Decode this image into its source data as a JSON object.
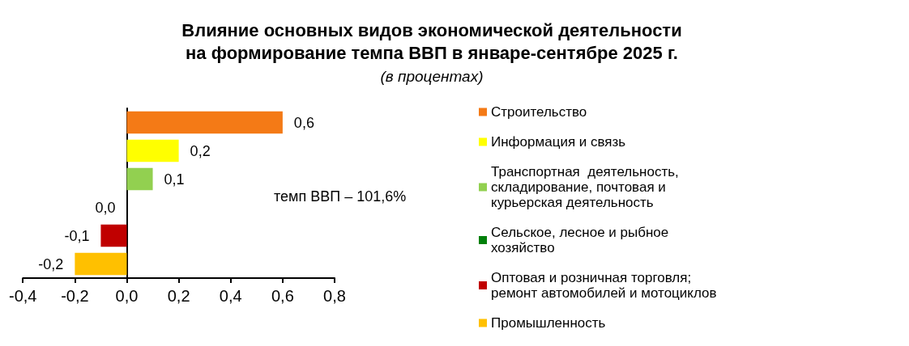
{
  "chart_data": {
    "type": "bar",
    "orientation": "horizontal",
    "title": "Влияние основных видов экономической деятельности\nна формирование темпа ВВП в январе-сентябре 2025 г.",
    "subtitle": "(в процентах)",
    "categories": [
      null,
      null,
      null,
      null,
      null,
      null
    ],
    "series": [
      {
        "name": "Строительство",
        "color": "#f47a16",
        "values": [
          0.6,
          null,
          null,
          null,
          null,
          null
        ],
        "value_labels": [
          "0,6",
          null,
          null,
          null,
          null,
          null
        ]
      },
      {
        "name": "Информация и связь",
        "color": "#ffff00",
        "values": [
          null,
          0.2,
          null,
          null,
          null,
          null
        ],
        "value_labels": [
          null,
          "0,2",
          null,
          null,
          null,
          null
        ]
      },
      {
        "name": "Транспортная  деятельность, складирование, почтовая и курьерская деятельность",
        "color": "#92d050",
        "values": [
          null,
          null,
          0.1,
          null,
          null,
          null
        ],
        "value_labels": [
          null,
          null,
          "0,1",
          null,
          null,
          null
        ]
      },
      {
        "name": "Сельское, лесное и рыбное хозяйство",
        "color": "#00800a",
        "values": [
          null,
          null,
          null,
          0.0,
          null,
          null
        ],
        "value_labels": [
          null,
          null,
          null,
          "0,0",
          null,
          null
        ]
      },
      {
        "name": "Оптовая и розничная торговля; ремонт автомобилей и мотоциклов",
        "color": "#c00000",
        "values": [
          null,
          null,
          null,
          null,
          -0.1,
          null
        ],
        "value_labels": [
          null,
          null,
          null,
          null,
          "-0,1",
          null
        ]
      },
      {
        "name": "Промышленность",
        "color": "#ffc000",
        "values": [
          null,
          null,
          null,
          null,
          null,
          -0.2
        ],
        "value_labels": [
          null,
          null,
          null,
          null,
          null,
          "-0,2"
        ]
      }
    ],
    "xlim": [
      -0.4,
      0.8
    ],
    "xticks": [
      {
        "value": -0.4,
        "label": "-0,4"
      },
      {
        "value": -0.2,
        "label": "-0,2"
      },
      {
        "value": 0,
        "label": "0,0"
      },
      {
        "value": 0.2,
        "label": "0,2"
      },
      {
        "value": 0.4,
        "label": "0,4"
      },
      {
        "value": 0.6,
        "label": "0,6"
      },
      {
        "value": 0.8,
        "label": "0,8"
      }
    ],
    "legend": "right",
    "annotations": [
      "темп ВВП – 101,6%"
    ]
  }
}
